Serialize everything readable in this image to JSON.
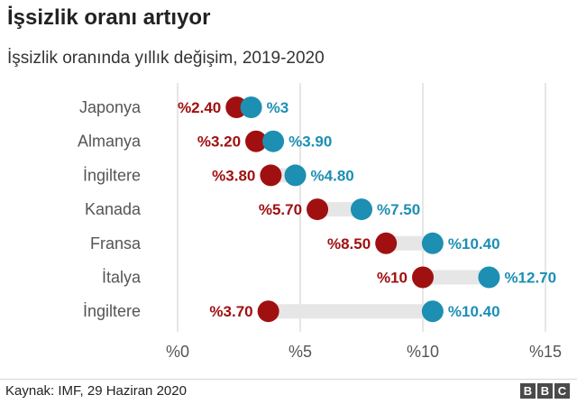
{
  "title": "İşsizlik oranı artıyor",
  "subtitle": "İşsizlik oranında yıllık değişim, 2019-2020",
  "source": "Kaynak: IMF, 29 Haziran 2020",
  "logo": [
    "B",
    "B",
    "C"
  ],
  "colors": {
    "year2019": "#a01010",
    "year2020": "#1c8fb3",
    "range": "#e6e6e6",
    "grid": "#cccccc"
  },
  "chart_data": {
    "type": "dumbbell",
    "xlim": [
      0,
      15
    ],
    "x_ticks": [
      {
        "value": 0,
        "label": "%0"
      },
      {
        "value": 5,
        "label": "%5"
      },
      {
        "value": 10,
        "label": "%10"
      },
      {
        "value": 15,
        "label": "%15"
      }
    ],
    "categories": [
      "Japonya",
      "Almanya",
      "İngiltere",
      "Kanada",
      "Fransa",
      "İtalya",
      "İngiltere"
    ],
    "series": [
      {
        "values": [
          2.4,
          3.2,
          3.8,
          5.7,
          8.5,
          10,
          3.7
        ],
        "labels": [
          "%2.40",
          "%3.20",
          "%3.80",
          "%5.70",
          "%8.50",
          "%10",
          "%3.70"
        ]
      },
      {
        "values": [
          3,
          3.9,
          4.8,
          7.5,
          10.4,
          12.7,
          10.4
        ],
        "labels": [
          "%3",
          "%3.90",
          "%4.80",
          "%7.50",
          "%10.40",
          "%12.70",
          "%10.40"
        ]
      }
    ],
    "grid": true
  }
}
